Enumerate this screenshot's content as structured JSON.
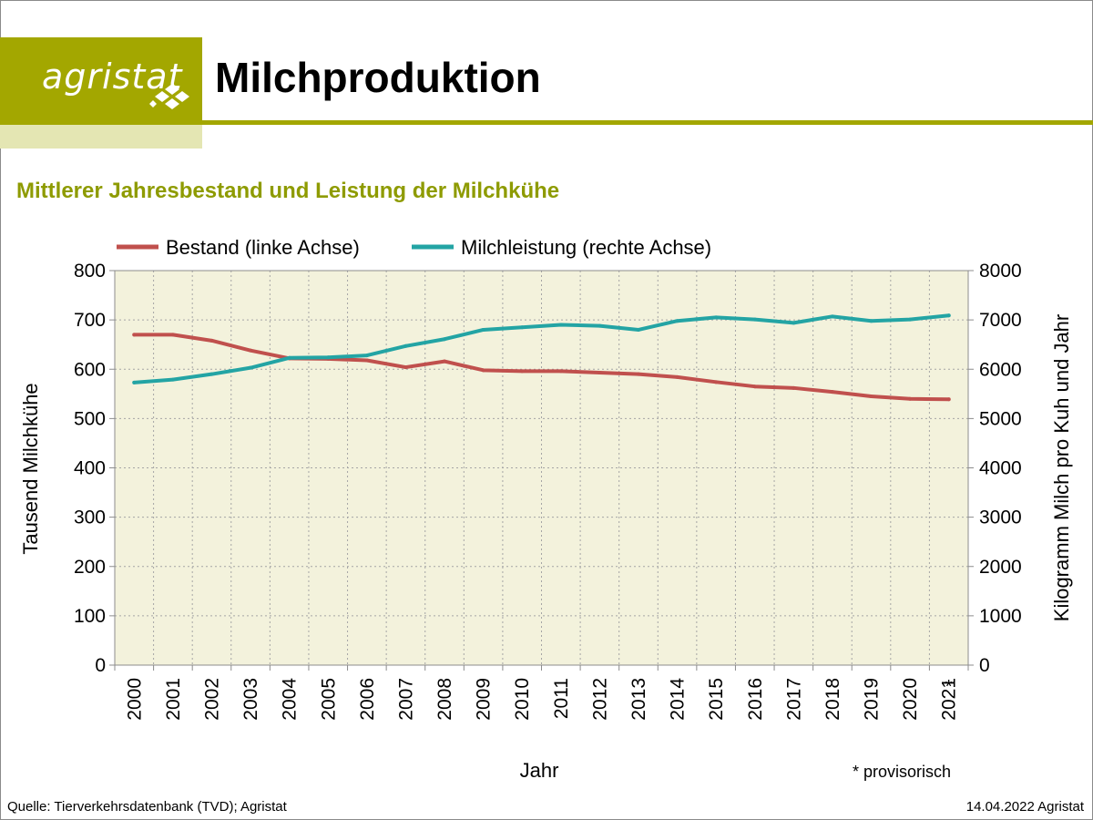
{
  "header": {
    "logo_text": "agristat",
    "title": "Milchproduktion"
  },
  "subtitle": "Mittlerer Jahresbestand und Leistung der Milchkühe",
  "footer": {
    "source": "Quelle: Tierverkehrsdatenbank (TVD); Agristat",
    "date": "14.04.2022 Agristat"
  },
  "note": "* provisorisch",
  "colors": {
    "brand": "#a3a700",
    "brand_light": "#e4e6b3",
    "subtitle": "#8e9b00",
    "plot_bg": "#f3f2dc",
    "bestand": "#c0504d",
    "milchleistung": "#23a4a4"
  },
  "chart_data": {
    "type": "line",
    "title": "Mittlerer Jahresbestand und Leistung der Milchkühe",
    "xlabel": "Jahr",
    "ylabel_left": "Tausend Milchkühe",
    "ylabel_right": "Kilogramm Milch pro Kuh und Jahr",
    "ylim_left": [
      0,
      800
    ],
    "ylim_right": [
      0,
      8000
    ],
    "yticks_left": [
      0,
      100,
      200,
      300,
      400,
      500,
      600,
      700,
      800
    ],
    "yticks_right": [
      0,
      1000,
      2000,
      3000,
      4000,
      5000,
      6000,
      7000,
      8000
    ],
    "x": [
      "2000",
      "2001",
      "2002",
      "2003",
      "2004",
      "2005",
      "2006",
      "2007",
      "2008",
      "2009",
      "2010",
      "2011",
      "2012",
      "2013",
      "2014",
      "2015",
      "2016",
      "2017",
      "2018",
      "2019",
      "2020",
      "2021"
    ],
    "x_marker": {
      "category": "2021",
      "symbol": "*"
    },
    "grid": true,
    "legend_position": "top",
    "series": [
      {
        "name": "Bestand (linke Achse)",
        "axis": "left",
        "color": "#c0504d",
        "values": [
          670,
          670,
          658,
          638,
          622,
          621,
          618,
          604,
          616,
          598,
          596,
          596,
          593,
          590,
          584,
          574,
          565,
          562,
          554,
          545,
          540,
          539
        ]
      },
      {
        "name": "Milchleistung (rechte Achse)",
        "axis": "right",
        "color": "#23a4a4",
        "values": [
          5730,
          5790,
          5900,
          6030,
          6230,
          6240,
          6280,
          6470,
          6610,
          6800,
          6850,
          6900,
          6880,
          6800,
          6980,
          7050,
          7010,
          6940,
          7070,
          6980,
          7010,
          7090
        ]
      }
    ]
  }
}
